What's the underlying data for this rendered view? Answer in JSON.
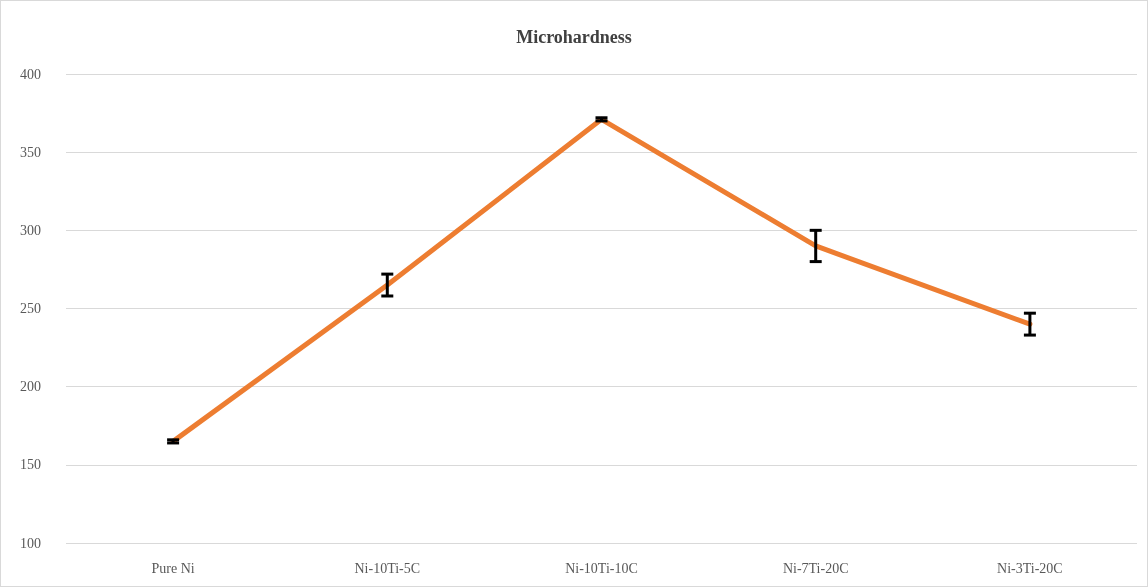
{
  "chart_data": {
    "type": "line",
    "title": "Microhardness",
    "categories": [
      "Pure Ni",
      "Ni-10Ti-5C",
      "Ni-10Ti-10C",
      "Ni-7Ti-20C",
      "Ni-3Ti-20C"
    ],
    "series": [
      {
        "color": "#ed7d31",
        "values": [
          165,
          265,
          371,
          290,
          240
        ],
        "errors": [
          1,
          7,
          1,
          10,
          7
        ]
      }
    ],
    "ylim": [
      100,
      400
    ],
    "yticks": [
      100,
      150,
      200,
      250,
      300,
      350,
      400
    ],
    "grid": "y",
    "marker": "none",
    "line_style": "solid"
  }
}
